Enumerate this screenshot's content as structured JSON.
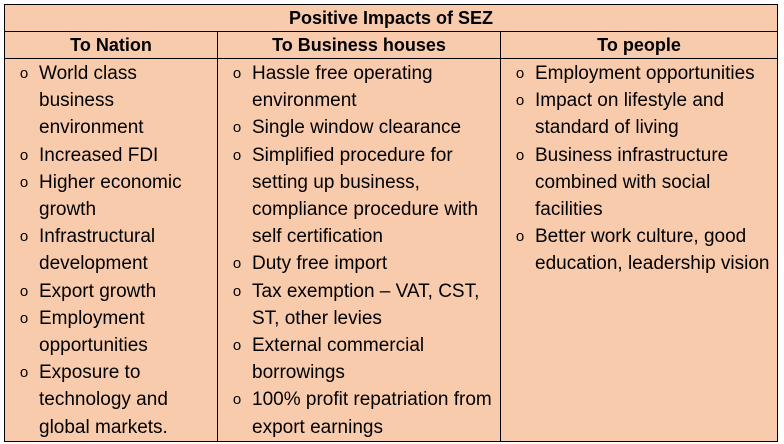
{
  "title": "Positive Impacts of SEZ",
  "columns": [
    {
      "heading": "To Nation",
      "items": [
        "World class business environment",
        "Increased FDI",
        "Higher economic growth",
        "Infrastructural development",
        "Export growth",
        "Employment opportunities",
        "Exposure to technology and global markets."
      ]
    },
    {
      "heading": "To Business houses",
      "items": [
        "Hassle free operating environment",
        "Single window clearance",
        "Simplified procedure for setting up business, compliance procedure with self certification",
        "Duty free import",
        "Tax exemption – VAT, CST, ST, other levies",
        "External commercial borrowings",
        "100% profit repatriation from export earnings"
      ]
    },
    {
      "heading": "To people",
      "items": [
        "Employment opportunities",
        "Impact on lifestyle and standard of living",
        "Business infrastructure combined with social facilities",
        "Better work culture, good education, leadership vision"
      ]
    }
  ],
  "bullet_glyph": "o",
  "colors": {
    "background": "#f8cbad",
    "border": "#000000",
    "text": "#000000"
  }
}
